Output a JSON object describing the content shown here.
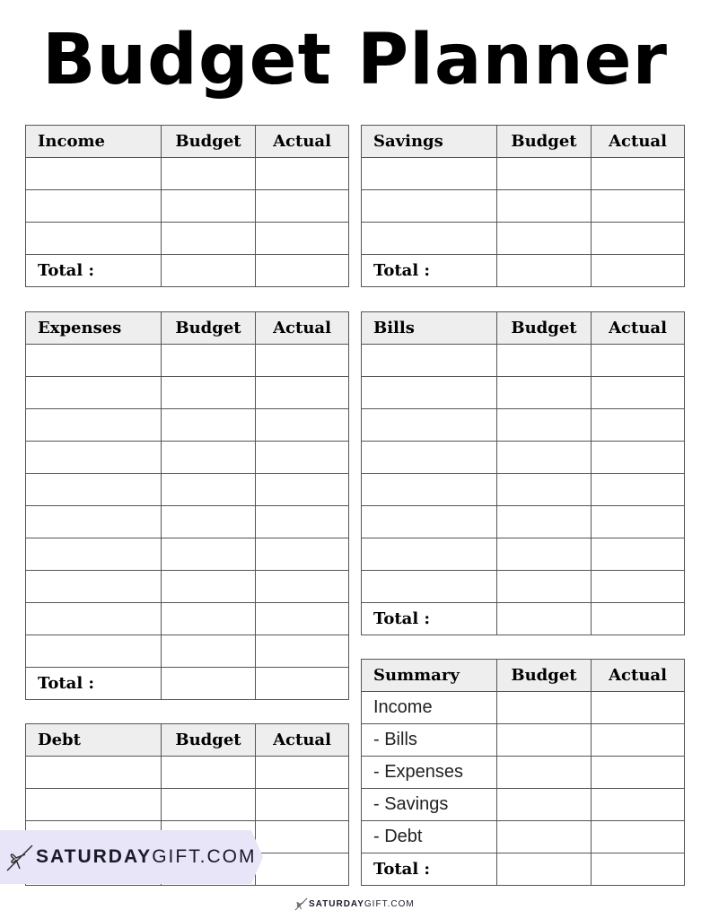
{
  "title": "Budget Planner",
  "tables": [
    {
      "id": "income",
      "headers": [
        "Income",
        "Budget",
        "Actual"
      ],
      "rows": [
        "",
        "",
        "",
        "Total :"
      ]
    },
    {
      "id": "savings",
      "headers": [
        "Savings",
        "Budget",
        "Actual"
      ],
      "rows": [
        "",
        "",
        "",
        "Total :"
      ]
    },
    {
      "id": "expenses",
      "headers": [
        "Expenses",
        "Budget",
        "Actual"
      ],
      "rows": [
        "",
        "",
        "",
        "",
        "",
        "",
        "",
        "",
        "",
        "",
        "Total :"
      ]
    },
    {
      "id": "bills",
      "headers": [
        "Bills",
        "Budget",
        "Actual"
      ],
      "rows": [
        "",
        "",
        "",
        "",
        "",
        "",
        "",
        "",
        "Total :"
      ]
    },
    {
      "id": "summary",
      "headers": [
        "Summary",
        "Budget",
        "Actual"
      ],
      "rows": [
        "Income",
        " - Bills",
        " - Expenses",
        " - Savings",
        " - Debt",
        "Total :"
      ]
    },
    {
      "id": "debt",
      "headers": [
        "Debt",
        "Budget",
        "Actual"
      ],
      "rows": [
        "",
        "",
        "",
        ""
      ]
    }
  ],
  "brand": {
    "bold": "SATURDAY",
    "light": "GIFT.COM",
    "icon": "ribbon-bow-icon",
    "banner_color": "#e7e5f7"
  }
}
